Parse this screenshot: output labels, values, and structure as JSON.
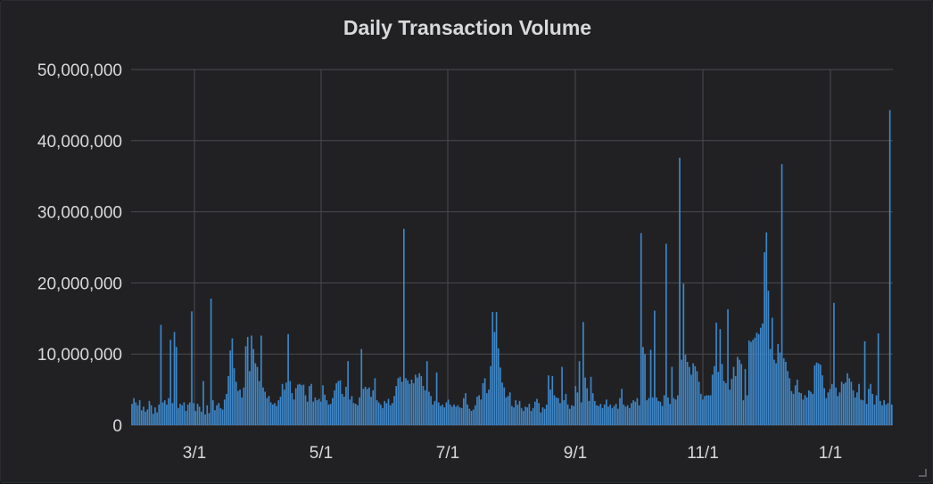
{
  "panel": {
    "title": "Daily Transaction Volume"
  },
  "colors": {
    "bar": "#3f87c8",
    "grid": "#4a4a4f",
    "text": "#d8d9da",
    "background": "#212124"
  },
  "chart_data": {
    "type": "bar",
    "title": "Daily Transaction Volume",
    "xlabel": "",
    "ylabel": "",
    "ylim": [
      0,
      50000000
    ],
    "yticks": [
      "0",
      "10,000,000",
      "20,000,000",
      "30,000,000",
      "40,000,000",
      "50,000,000"
    ],
    "xticks": [
      "3/1",
      "5/1",
      "7/1",
      "9/1",
      "11/1",
      "1/1"
    ],
    "grid": true,
    "series": [
      {
        "values": [
          3.0,
          3.8,
          3.2,
          2.8,
          3.5,
          2.1,
          2.6,
          1.9,
          2.2,
          3.4,
          2.8,
          1.6,
          2.5,
          1.8,
          2.9,
          14.1,
          3.2,
          3.5,
          2.9,
          3.8,
          12.0,
          3.1,
          13.1,
          11.0,
          2.4,
          3.0,
          2.8,
          3.2,
          2.0,
          2.9,
          3.2,
          16.0,
          3.1,
          2.0,
          3.0,
          2.6,
          1.9,
          6.2,
          1.5,
          2.8,
          1.7,
          17.8,
          3.5,
          2.1,
          2.8,
          3.1,
          2.4,
          2.2,
          3.6,
          4.4,
          6.9,
          10.5,
          12.2,
          8.0,
          6.1,
          4.8,
          5.0,
          3.9,
          5.3,
          11.1,
          12.4,
          7.6,
          12.6,
          10.7,
          8.7,
          8.2,
          6.2,
          12.6,
          5.3,
          4.7,
          3.8,
          4.1,
          3.2,
          2.9,
          3.1,
          2.7,
          3.5,
          4.0,
          5.8,
          5.0,
          6.0,
          12.8,
          6.2,
          4.5,
          3.6,
          5.2,
          5.7,
          5.8,
          5.6,
          5.7,
          4.2,
          3.3,
          5.5,
          5.8,
          3.3,
          3.9,
          3.5,
          3.7,
          3.3,
          5.6,
          4.3,
          3.5,
          2.9,
          3.0,
          3.8,
          4.9,
          5.9,
          6.2,
          6.3,
          4.4,
          4.0,
          5.4,
          9.0,
          3.6,
          4.1,
          3.1,
          3.0,
          2.8,
          3.9,
          10.7,
          5.1,
          5.4,
          5.1,
          5.3,
          4.0,
          4.9,
          6.6,
          3.5,
          3.2,
          2.9,
          2.4,
          3.4,
          3.1,
          3.7,
          2.8,
          3.1,
          4.1,
          5.5,
          6.6,
          6.8,
          6.1,
          27.6,
          6.6,
          6.3,
          5.8,
          6.4,
          5.9,
          7.1,
          6.7,
          7.3,
          6.9,
          5.5,
          4.9,
          9.0,
          4.7,
          4.1,
          2.9,
          3.4,
          7.4,
          3.2,
          2.7,
          2.9,
          2.5,
          3.2,
          3.6,
          2.9,
          2.6,
          2.9,
          2.6,
          2.8,
          2.5,
          2.4,
          3.8,
          4.5,
          2.9,
          2.3,
          2.0,
          2.2,
          2.8,
          4.0,
          4.2,
          3.6,
          5.9,
          6.6,
          4.5,
          5.0,
          8.3,
          15.9,
          13.1,
          15.9,
          10.8,
          8.1,
          6.0,
          5.3,
          3.9,
          4.1,
          4.6,
          2.7,
          2.5,
          3.5,
          2.9,
          3.4,
          2.4,
          2.0,
          2.6,
          2.5,
          3.0,
          2.0,
          2.4,
          3.3,
          3.7,
          3.1,
          1.8,
          2.5,
          2.3,
          2.9,
          7.0,
          5.0,
          6.9,
          4.2,
          3.9,
          3.8,
          3.1,
          8.2,
          3.5,
          4.4,
          2.9,
          2.3,
          2.8,
          2.7,
          5.5,
          4.6,
          9.0,
          3.2,
          14.5,
          6.7,
          5.2,
          3.4,
          6.8,
          4.5,
          3.4,
          2.8,
          2.7,
          3.0,
          2.4,
          2.9,
          3.6,
          2.6,
          2.9,
          2.4,
          2.7,
          3.0,
          2.3,
          3.8,
          5.1,
          2.9,
          2.6,
          2.8,
          2.4,
          3.1,
          3.5,
          3.3,
          3.8,
          2.8,
          27.0,
          11.0,
          10.0,
          3.5,
          3.8,
          10.6,
          3.9,
          16.1,
          3.9,
          3.4,
          3.3,
          2.7,
          4.2,
          25.5,
          3.9,
          3.0,
          8.2,
          3.8,
          3.6,
          4.2,
          37.6,
          9.2,
          19.9,
          9.9,
          8.9,
          8.2,
          7.1,
          8.7,
          8.3,
          7.6,
          6.1,
          4.4,
          3.6,
          4.1,
          4.2,
          4.2,
          4.2,
          7.1,
          8.3,
          14.4,
          7.5,
          13.5,
          8.6,
          6.2,
          5.9,
          16.3,
          5.0,
          6.5,
          8.2,
          6.9,
          9.6,
          9.2,
          8.6,
          3.5,
          7.9,
          4.2,
          11.9,
          11.7,
          12.0,
          12.3,
          13.0,
          12.8,
          13.7,
          14.3,
          24.3,
          27.1,
          18.9,
          10.7,
          15.1,
          9.2,
          8.7,
          11.4,
          10.2,
          36.7,
          9.4,
          8.9,
          7.6,
          6.6,
          4.8,
          4.4,
          5.6,
          6.4,
          4.6,
          4.5,
          3.6,
          4.2,
          3.9,
          4.9,
          4.7,
          4.4,
          8.4,
          8.8,
          8.7,
          8.5,
          7.0,
          5.2,
          3.8,
          4.6,
          5.1,
          5.8,
          17.2,
          5.3,
          4.1,
          4.6,
          6.1,
          5.8,
          6.0,
          7.3,
          6.6,
          6.1,
          4.9,
          3.9,
          4.6,
          5.8,
          3.6,
          3.5,
          11.8,
          3.0,
          5.1,
          5.8,
          4.4,
          2.9,
          4.2,
          12.9,
          3.4,
          2.8,
          3.5,
          2.9,
          3.1,
          44.3,
          2.9
        ]
      }
    ]
  }
}
